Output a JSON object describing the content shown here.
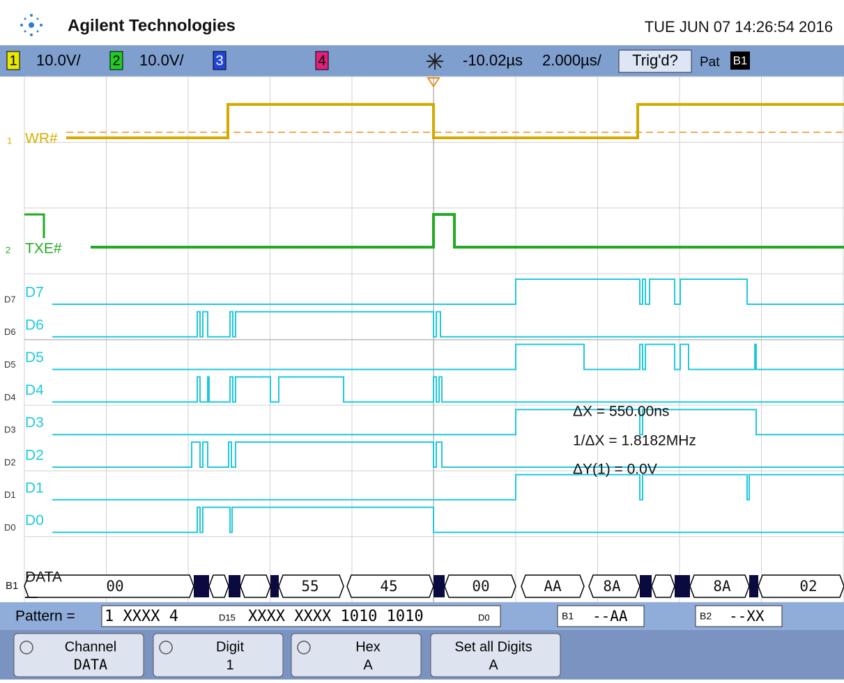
{
  "header": {
    "brand": "Agilent Technologies",
    "datetime": "TUE JUN 07 14:26:54 2016"
  },
  "status_bar": {
    "ch1": "1",
    "ch1_scale": "10.0V/",
    "ch2": "2",
    "ch2_scale": "10.0V/",
    "ch3": "3",
    "ch4": "4",
    "delay": "-10.02µs",
    "timebase": "2.000µs/",
    "trigger": "Trig'd?",
    "mode": "Pat",
    "bus": "B1"
  },
  "traces": {
    "analog": [
      {
        "marker": "1",
        "label": "WR#"
      },
      {
        "marker": "2",
        "label": "TXE#"
      }
    ],
    "digital": [
      {
        "marker": "D7",
        "label": "D7"
      },
      {
        "marker": "D6",
        "label": "D6"
      },
      {
        "marker": "D5",
        "label": "D5"
      },
      {
        "marker": "D4",
        "label": "D4"
      },
      {
        "marker": "D3",
        "label": "D3"
      },
      {
        "marker": "D2",
        "label": "D2"
      },
      {
        "marker": "D1",
        "label": "D1"
      },
      {
        "marker": "D0",
        "label": "D0"
      }
    ],
    "bus": {
      "marker": "B1",
      "label": "DATA",
      "values": [
        "00",
        "55",
        "45",
        "00",
        "AA",
        "8A",
        "8A",
        "02"
      ]
    }
  },
  "measurements": [
    "ΔX = 550.00ns",
    "1/ΔX = 1.8182MHz",
    "ΔY(1) = 0.0V"
  ],
  "pattern_bar": {
    "label": "Pattern =",
    "prefix": "1 XXXX 4",
    "msb": "D15",
    "pattern": "XXXX XXXX 1010 1010",
    "lsb": "D0",
    "b1": "B1",
    "b1_value": "--AA",
    "b2": "B2",
    "b2_value": "--XX"
  },
  "softkeys": [
    {
      "title": "Channel",
      "value": "DATA"
    },
    {
      "title": "Digit",
      "value": "1"
    },
    {
      "title": "Hex",
      "value": "A"
    },
    {
      "title": "Set all Digits",
      "value": "A"
    }
  ]
}
